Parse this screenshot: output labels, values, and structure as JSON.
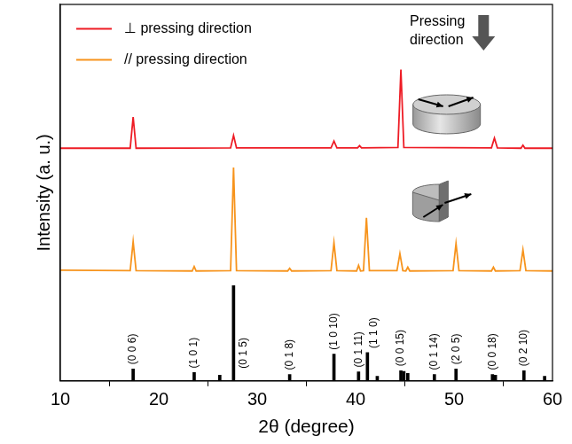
{
  "chart_data": {
    "type": "line",
    "x_label": "2θ (degree)",
    "y_label": "Intensity (a. u.)",
    "xlim": [
      10,
      60
    ],
    "xticks": [
      10,
      20,
      30,
      40,
      50,
      60
    ],
    "ylim": [
      0,
      100
    ],
    "tick_labels": "x",
    "grid": false,
    "legend": "upper left",
    "annotations": [
      {
        "text": "Pressing direction"
      }
    ],
    "series": [
      {
        "name": "⊥ pressing direction",
        "color": "#ee1c25",
        "type": "line",
        "x": [
          10,
          17.1,
          17.4,
          17.7,
          27.3,
          27.6,
          27.9,
          37.5,
          37.8,
          38.1,
          40.2,
          40.4,
          40.6,
          44.3,
          44.6,
          44.9,
          53.8,
          54.1,
          54.4,
          56.8,
          57.0,
          57.2,
          60
        ],
        "values": [
          61.8,
          61.8,
          70.1,
          61.8,
          61.9,
          65.2,
          61.9,
          61.9,
          63.7,
          61.9,
          61.9,
          62.5,
          61.9,
          62.0,
          82.7,
          62.0,
          61.9,
          64.5,
          61.9,
          61.8,
          62.6,
          61.8,
          61.8
        ]
      },
      {
        "name": "// pressing direction",
        "color": "#f7941d",
        "type": "line",
        "x": [
          10,
          17.1,
          17.4,
          17.7,
          23.4,
          23.6,
          23.8,
          27.3,
          27.6,
          27.9,
          33.1,
          33.3,
          33.5,
          37.5,
          37.8,
          38.1,
          40.1,
          40.3,
          40.5,
          40.8,
          41.1,
          41.4,
          44.2,
          44.5,
          44.8,
          45.1,
          45.3,
          45.5,
          49.9,
          50.2,
          50.5,
          53.8,
          54.0,
          54.2,
          56.7,
          57.0,
          57.3,
          60
        ],
        "values": [
          29.4,
          29.3,
          37.0,
          29.3,
          29.2,
          30.4,
          29.2,
          29.3,
          56.7,
          29.3,
          29.2,
          29.9,
          29.2,
          29.3,
          36.7,
          29.3,
          29.2,
          30.7,
          29.2,
          29.3,
          43.3,
          29.3,
          29.3,
          33.8,
          29.3,
          29.2,
          30.2,
          29.2,
          29.3,
          36.5,
          29.3,
          29.2,
          30.2,
          29.2,
          29.3,
          34.8,
          29.3,
          29.2
        ]
      },
      {
        "color": "#000000",
        "type": "bar",
        "x": [
          17.4,
          23.6,
          26.2,
          27.6,
          33.3,
          37.8,
          40.3,
          41.2,
          42.2,
          44.6,
          44.9,
          45.3,
          48.0,
          50.2,
          53.9,
          54.2,
          57.1,
          59.2
        ],
        "values": [
          3.2,
          2.2,
          1.5,
          25.3,
          1.7,
          7.1,
          2.4,
          7.5,
          1.2,
          2.7,
          2.5,
          2.0,
          1.7,
          3.2,
          1.7,
          1.5,
          2.7,
          1.2
        ],
        "labels": [
          "(0 0 6)",
          "(1 0 1)",
          null,
          "(0 1 5)",
          "(0 1 8)",
          "(1 0 10)",
          "(0 1 11)",
          "(1 1 0)",
          null,
          "(0 0 15)",
          null,
          null,
          "(0 1 14)",
          "(2 0 5)",
          "(0 0 18)",
          null,
          "(0 2 10)",
          null
        ]
      }
    ]
  }
}
